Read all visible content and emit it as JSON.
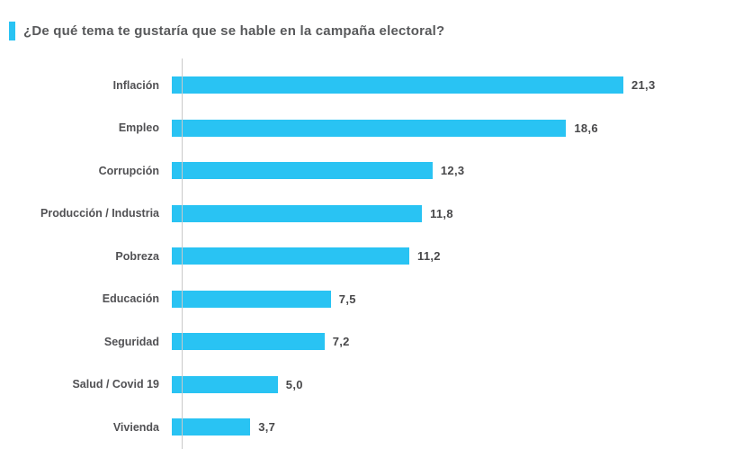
{
  "header": {
    "title": "¿De qué tema te gustaría que se hable en la campaña electoral?"
  },
  "colors": {
    "accent": "#29C3F3",
    "bar": "#29C3F3",
    "title_text": "#58595B",
    "label_text": "#515154",
    "value_text": "#48484A",
    "axis_line": "#C9C9C9"
  },
  "chart_data": {
    "type": "bar",
    "orientation": "horizontal",
    "title": "¿De qué tema te gustaría que se hable en la campaña electoral?",
    "categories": [
      "Inflación",
      "Empleo",
      "Corrupción",
      "Producción / Industria",
      "Pobreza",
      "Educación",
      "Seguridad",
      "Salud / Covid 19",
      "Vivienda"
    ],
    "values": [
      21.3,
      18.6,
      12.3,
      11.8,
      11.2,
      7.5,
      7.2,
      5.0,
      3.7
    ],
    "value_labels": [
      "21,3",
      "18,6",
      "12,3",
      "11,8",
      "11,2",
      "7,5",
      "7,2",
      "5,0",
      "3,7"
    ],
    "xlabel": "",
    "ylabel": "",
    "xlim": [
      0,
      22
    ],
    "grid": false,
    "legend": false,
    "bar_color": "#29C3F3"
  }
}
